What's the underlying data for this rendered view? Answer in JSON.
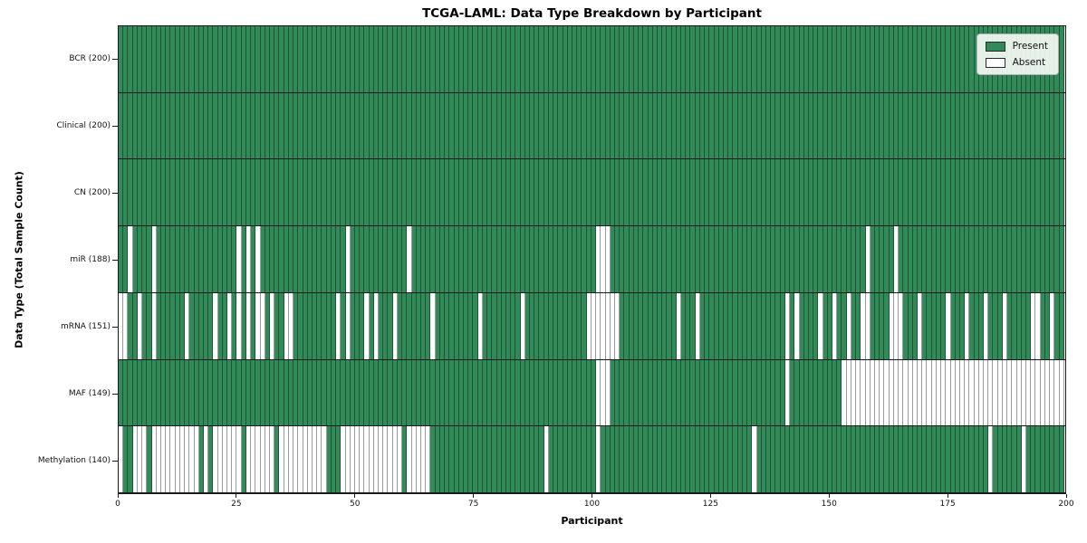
{
  "title": "TCGA-LAML: Data Type Breakdown by Participant",
  "xlabel": "Participant",
  "ylabel": "Data Type (Total Sample Count)",
  "legend": {
    "present": "Present",
    "absent": "Absent"
  },
  "colors": {
    "present": "#318a58",
    "absent": "#ffffff",
    "row_separator": "#1a1a1a",
    "cell_border_present": "rgba(12,38,24,0.52)",
    "cell_border_absent": "#9b9b9b"
  },
  "chart_data": {
    "type": "heatmap",
    "title": "TCGA-LAML: Data Type Breakdown by Participant",
    "xlabel": "Participant",
    "ylabel": "Data Type (Total Sample Count)",
    "x_range": [
      0,
      200
    ],
    "n_participants": 200,
    "x_tick_labels": [
      "0",
      "25",
      "50",
      "75",
      "100",
      "125",
      "150",
      "175",
      "200"
    ],
    "x_tick_values": [
      0,
      25,
      50,
      75,
      100,
      125,
      150,
      175,
      200
    ],
    "legend_position": "upper right",
    "grid": false,
    "value_encoding": {
      "present": 1,
      "absent": 0
    },
    "rows": [
      {
        "label": "BCR (200)",
        "data_type": "BCR",
        "total_samples": 200,
        "absent_participants": []
      },
      {
        "label": "Clinical (200)",
        "data_type": "Clinical",
        "total_samples": 200,
        "absent_participants": []
      },
      {
        "label": "CN (200)",
        "data_type": "CN",
        "total_samples": 200,
        "absent_participants": []
      },
      {
        "label": "miR (188)",
        "data_type": "miR",
        "total_samples": 188,
        "absent_participants": [
          2,
          7,
          25,
          27,
          29,
          48,
          61,
          101,
          102,
          103,
          158,
          164
        ]
      },
      {
        "label": "mRNA (151)",
        "data_type": "mRNA",
        "total_samples": 151,
        "absent_participants": [
          0,
          1,
          4,
          7,
          14,
          20,
          23,
          25,
          27,
          29,
          30,
          32,
          35,
          36,
          46,
          48,
          52,
          54,
          58,
          66,
          76,
          85,
          99,
          100,
          101,
          102,
          103,
          104,
          105,
          118,
          122,
          141,
          143,
          148,
          151,
          154,
          157,
          158,
          163,
          164,
          165,
          169,
          175,
          179,
          183,
          187,
          193,
          194,
          197
        ]
      },
      {
        "label": "MAF (149)",
        "data_type": "MAF",
        "total_samples": 149,
        "absent_participants": [
          101,
          102,
          103,
          141,
          153,
          154,
          155,
          156,
          157,
          158,
          159,
          160,
          161,
          162,
          163,
          164,
          165,
          166,
          167,
          168,
          169,
          170,
          171,
          172,
          173,
          174,
          175,
          176,
          177,
          178,
          179,
          180,
          181,
          182,
          183,
          184,
          185,
          186,
          187,
          188,
          189,
          190,
          191,
          192,
          193,
          194,
          195,
          196,
          197,
          198,
          199
        ]
      },
      {
        "label": "Methylation (140)",
        "data_type": "Methylation",
        "total_samples": 140,
        "absent_participants": [
          0,
          3,
          4,
          5,
          7,
          8,
          9,
          10,
          11,
          12,
          13,
          14,
          15,
          16,
          18,
          20,
          21,
          22,
          23,
          24,
          25,
          27,
          28,
          29,
          30,
          31,
          32,
          34,
          35,
          36,
          37,
          38,
          39,
          40,
          41,
          42,
          43,
          47,
          48,
          49,
          50,
          51,
          52,
          53,
          54,
          55,
          56,
          57,
          58,
          59,
          61,
          62,
          63,
          64,
          65,
          90,
          101,
          134,
          184,
          191
        ]
      }
    ]
  }
}
